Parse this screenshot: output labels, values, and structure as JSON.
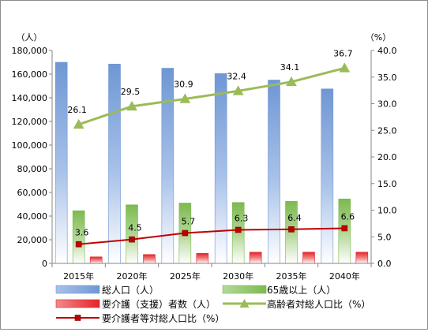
{
  "chart_data": {
    "type": "bar",
    "categories": [
      "2015年",
      "2020年",
      "2025年",
      "2030年",
      "2035年",
      "2040年"
    ],
    "y_left_label": "（人）",
    "y_right_label": "（%）",
    "y_left_range": [
      0,
      180000
    ],
    "y_left_ticks": [
      "0",
      "20,000",
      "40,000",
      "60,000",
      "80,000",
      "100,000",
      "120,000",
      "140,000",
      "160,000",
      "180,000"
    ],
    "y_right_range": [
      0,
      40
    ],
    "y_right_ticks": [
      "0.0",
      "5.0",
      "10.0",
      "15.0",
      "20.0",
      "25.0",
      "30.0",
      "35.0",
      "40.0"
    ],
    "grid": false,
    "legend_position": "bottom",
    "series": [
      {
        "name": "総人口（人）",
        "kind": "bar",
        "axis": "left",
        "color": "#6f97d4",
        "values": [
          170000,
          168500,
          165000,
          160500,
          155000,
          147500
        ]
      },
      {
        "name": "65歳以上（人）",
        "kind": "bar",
        "axis": "left",
        "color": "#7cb94f",
        "values": [
          44500,
          49500,
          51000,
          51500,
          52500,
          54500
        ]
      },
      {
        "name": "要介護（支援）者数（人）",
        "kind": "bar",
        "axis": "left",
        "color": "#e4242a",
        "values": [
          5500,
          7500,
          8500,
          9500,
          9500,
          9500
        ]
      },
      {
        "name": "高齢者対総人口比（%）",
        "kind": "line",
        "axis": "right",
        "color": "#9bbb59",
        "marker": "triangle",
        "values": [
          26.1,
          29.5,
          30.9,
          32.4,
          34.1,
          36.7
        ],
        "labels": [
          "26.1",
          "29.5",
          "30.9",
          "32.4",
          "34.1",
          "36.7"
        ]
      },
      {
        "name": "要介護者等対総人口比（%）",
        "kind": "line",
        "axis": "right",
        "color": "#c00000",
        "marker": "square",
        "values": [
          3.6,
          4.5,
          5.7,
          6.3,
          6.4,
          6.6
        ],
        "labels": [
          "3.6",
          "4.5",
          "5.7",
          "6.3",
          "6.4",
          "6.6"
        ]
      }
    ]
  }
}
